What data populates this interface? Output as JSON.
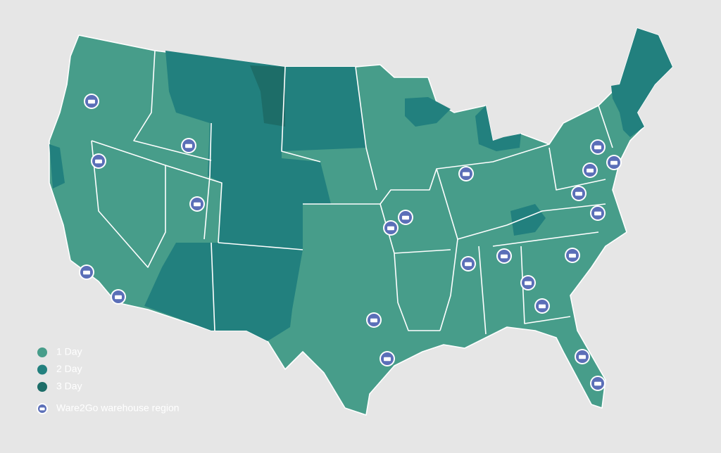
{
  "legend": {
    "items": [
      {
        "label": "1 Day",
        "color": "#479d8a"
      },
      {
        "label": "2 Day",
        "color": "#22807e"
      },
      {
        "label": "3 Day",
        "color": "#1d6d68"
      }
    ],
    "warehouse": {
      "label": "Ware2Go warehouse region",
      "color": "#5b6fb8"
    }
  }
}
